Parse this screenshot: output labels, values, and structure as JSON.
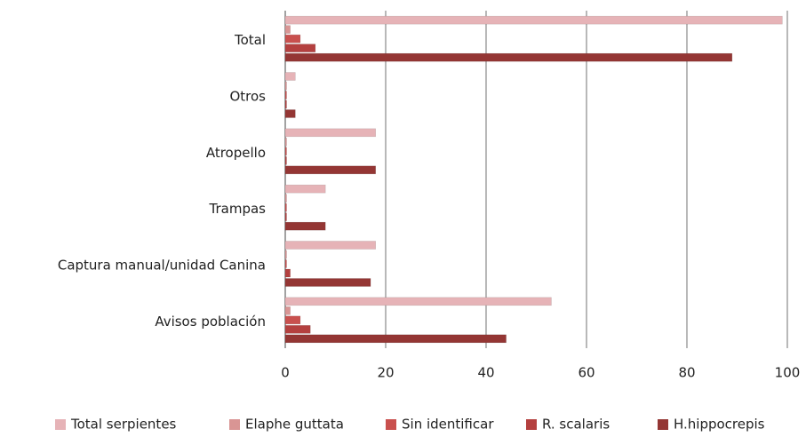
{
  "chart_data": {
    "type": "bar",
    "orientation": "horizontal",
    "categories": [
      "Total",
      "Otros",
      "Atropello",
      "Trampas",
      "Captura manual/unidad Canina",
      "Avisos población"
    ],
    "series": [
      {
        "name": "Total serpientes",
        "color": "#e6b3b7",
        "values": [
          99,
          2,
          18,
          8,
          18,
          53
        ]
      },
      {
        "name": "Elaphe guttata",
        "color": "#d99594",
        "values": [
          1,
          0,
          0,
          0,
          0,
          1
        ]
      },
      {
        "name": "Sin identificar",
        "color": "#c9504e",
        "values": [
          3,
          0,
          0,
          0,
          0,
          3
        ]
      },
      {
        "name": "R. scalaris",
        "color": "#b4403f",
        "values": [
          6,
          0,
          0,
          0,
          1,
          5
        ]
      },
      {
        "name": "H.hippocrepis",
        "color": "#943634",
        "values": [
          89,
          2,
          18,
          8,
          17,
          44
        ]
      }
    ],
    "xlim": [
      0,
      100
    ],
    "xticks": [
      0,
      20,
      40,
      60,
      80,
      100
    ],
    "grid": true,
    "legend": "bottom"
  }
}
